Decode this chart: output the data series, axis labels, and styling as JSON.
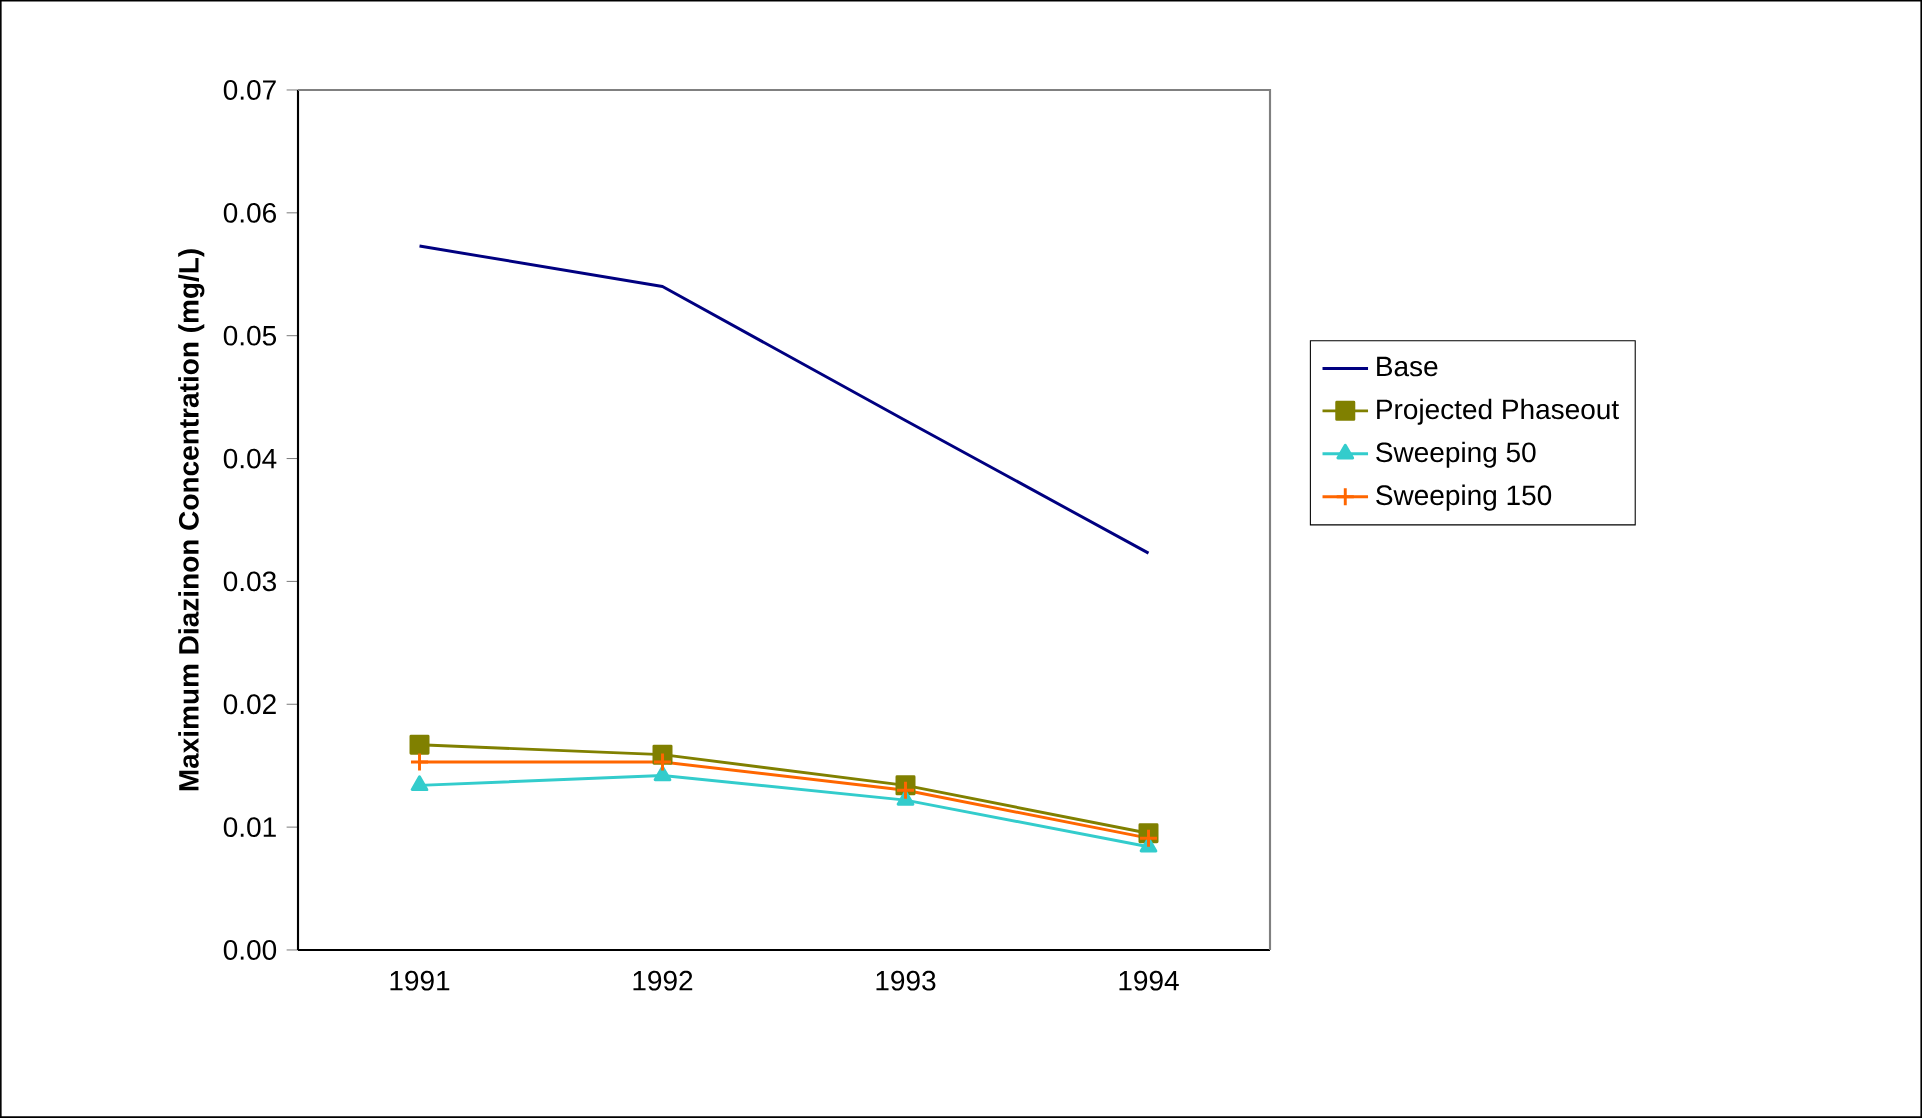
{
  "chart_data": {
    "type": "line",
    "ylabel": "Maximum Diazinon Concentration (mg/L)",
    "categories": [
      "1991",
      "1992",
      "1993",
      "1994"
    ],
    "series": [
      {
        "name": "Base",
        "color": "#000080",
        "marker": "none",
        "values": [
          0.0573,
          0.054,
          0.0431,
          0.0323
        ]
      },
      {
        "name": "Projected Phaseout",
        "color": "#808000",
        "marker": "square",
        "values": [
          0.0167,
          0.0159,
          0.0134,
          0.0095
        ]
      },
      {
        "name": "Sweeping 50",
        "color": "#33cccc",
        "marker": "triangle",
        "values": [
          0.0134,
          0.0142,
          0.0122,
          0.0084
        ]
      },
      {
        "name": "Sweeping 150",
        "color": "#ff6600",
        "marker": "cross",
        "values": [
          0.0153,
          0.0153,
          0.013,
          0.0091
        ]
      }
    ],
    "ylim": [
      0,
      0.07
    ],
    "yticks": [
      {
        "value": 0,
        "label": "0.00"
      },
      {
        "value": 0.01,
        "label": "0.01"
      },
      {
        "value": 0.02,
        "label": "0.02"
      },
      {
        "value": 0.03,
        "label": "0.03"
      },
      {
        "value": 0.04,
        "label": "0.04"
      },
      {
        "value": 0.05,
        "label": "0.05"
      },
      {
        "value": 0.06,
        "label": "0.06"
      },
      {
        "value": 0.07,
        "label": "0.07"
      }
    ],
    "legend": "right",
    "grid": false,
    "line_style": "solid"
  }
}
